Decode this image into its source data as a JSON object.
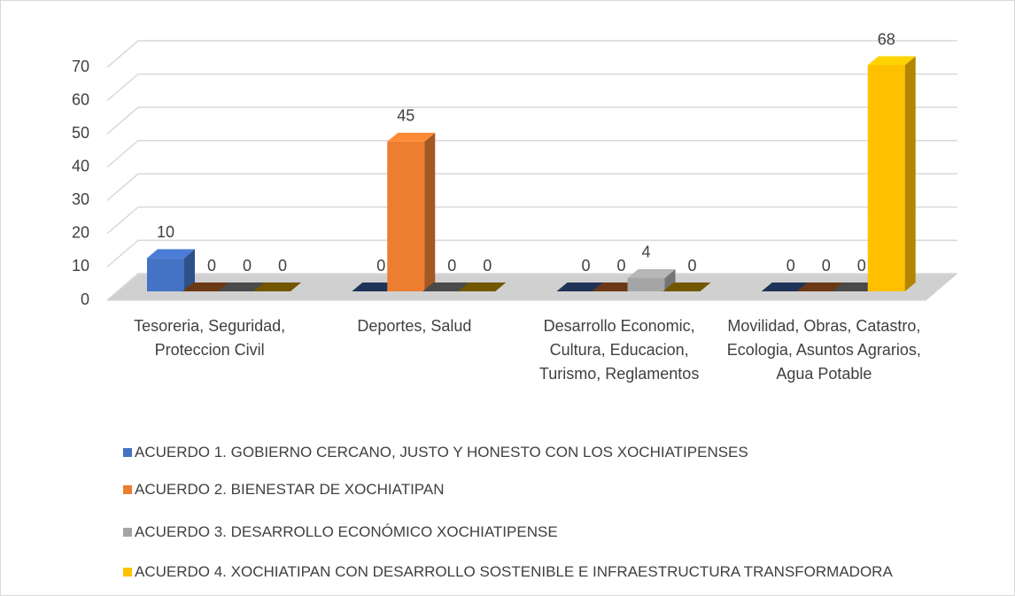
{
  "chart_data": {
    "type": "bar3d",
    "categories": [
      "Tesoreria, Seguridad, Proteccion Civil",
      "Deportes, Salud",
      "Desarrollo Economic, Cultura, Educacion, Turismo, Reglamentos",
      "Movilidad, Obras, Catastro, Ecologia, Asuntos Agrarios, Agua Potable"
    ],
    "series": [
      {
        "name": "ACUERDO 1. GOBIERNO CERCANO, JUSTO Y HONESTO CON LOS XOCHIATIPENSES",
        "color": "#4472c4",
        "values": [
          10,
          0,
          0,
          0
        ]
      },
      {
        "name": "ACUERDO 2. BIENESTAR DE XOCHIATIPAN",
        "color": "#ed7d31",
        "values": [
          0,
          45,
          0,
          0
        ]
      },
      {
        "name": "ACUERDO 3. DESARROLLO ECONÓMICO XOCHIATIPENSE",
        "color": "#a5a5a5",
        "values": [
          0,
          0,
          4,
          0
        ]
      },
      {
        "name": "ACUERDO 4. XOCHIATIPAN CON DESARROLLO SOSTENIBLE E INFRAESTRUCTURA TRANSFORMADORA",
        "color": "#ffc000",
        "values": [
          0,
          0,
          0,
          68
        ]
      }
    ],
    "ylim": [
      0,
      70
    ],
    "yticks": [
      0,
      10,
      20,
      30,
      40,
      50,
      60,
      70
    ],
    "grid": true,
    "legend": "bottom"
  }
}
